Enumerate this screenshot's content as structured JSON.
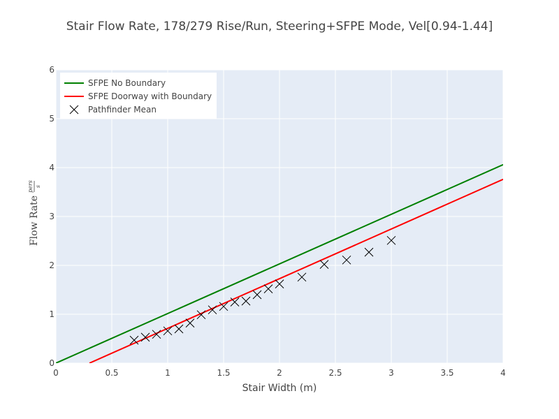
{
  "chart_data": {
    "type": "line",
    "title": "Stair Flow Rate, 178/279 Rise/Run, Steering+SFPE Mode, Vel[0.94-1.44]",
    "xlabel": "Stair Width (m)",
    "ylabel": {
      "text": "Flow Rate",
      "unit_numerator": "pers",
      "unit_denominator": "s"
    },
    "xlim": [
      0,
      4
    ],
    "ylim": [
      0,
      6
    ],
    "xticks": [
      0,
      0.5,
      1,
      1.5,
      2,
      2.5,
      3,
      3.5,
      4
    ],
    "xtick_labels": [
      "0",
      "0.5",
      "1",
      "1.5",
      "2",
      "2.5",
      "3",
      "3.5",
      "4"
    ],
    "yticks": [
      0,
      1,
      2,
      3,
      4,
      5,
      6
    ],
    "ytick_labels": [
      "0",
      "1",
      "2",
      "3",
      "4",
      "5",
      "6"
    ],
    "grid": true,
    "legend_position": "top-left",
    "series": [
      {
        "name": "SFPE No Boundary",
        "type": "line",
        "color": "#008000",
        "x": [
          0,
          4
        ],
        "y": [
          0,
          4.06
        ]
      },
      {
        "name": "SFPE Doorway with Boundary",
        "type": "line",
        "color": "#ff0000",
        "x": [
          0.3,
          4
        ],
        "y": [
          0,
          3.76
        ]
      },
      {
        "name": "Pathfinder Mean",
        "type": "scatter",
        "marker": "x",
        "color": "#000000",
        "x": [
          0.7,
          0.8,
          0.9,
          1.0,
          1.1,
          1.2,
          1.3,
          1.4,
          1.5,
          1.6,
          1.7,
          1.8,
          1.9,
          2.0,
          2.2,
          2.4,
          2.6,
          2.8,
          3.0
        ],
        "y": [
          0.47,
          0.53,
          0.59,
          0.66,
          0.7,
          0.82,
          0.99,
          1.09,
          1.16,
          1.25,
          1.27,
          1.4,
          1.52,
          1.62,
          1.76,
          2.02,
          2.11,
          2.27,
          2.51
        ]
      }
    ]
  }
}
